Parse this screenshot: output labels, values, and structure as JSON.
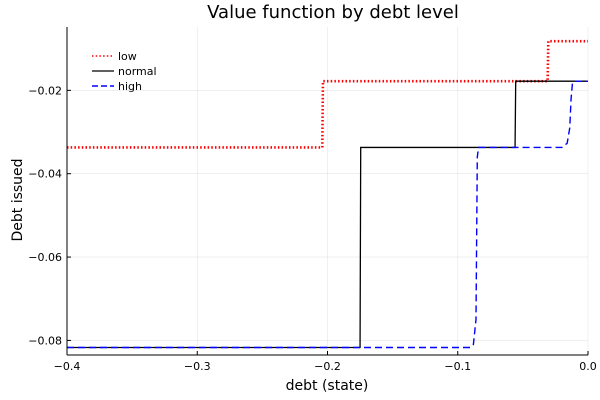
{
  "chart_data": {
    "type": "line",
    "title": "Value function by debt level",
    "xlabel": "debt (state)",
    "ylabel": "Debt issued",
    "xlim": [
      -0.4,
      0.0
    ],
    "ylim": [
      -0.0835,
      -0.0048
    ],
    "xticks": [
      -0.4,
      -0.3,
      -0.2,
      -0.1,
      0.0
    ],
    "xtick_labels": [
      "−0.4",
      "−0.3",
      "−0.2",
      "−0.1",
      "0.0"
    ],
    "yticks": [
      -0.08,
      -0.06,
      -0.04,
      -0.02
    ],
    "ytick_labels": [
      "−0.08",
      "−0.06",
      "−0.04",
      "−0.02"
    ],
    "grid": true,
    "legend_position": "top-left",
    "series": [
      {
        "name": "low",
        "color": "#ff0000",
        "style": "dotted",
        "x": [
          -0.4,
          -0.204,
          -0.2035,
          -0.031,
          -0.0305,
          0.0
        ],
        "y": [
          -0.0337,
          -0.0337,
          -0.0178,
          -0.0178,
          -0.0082,
          -0.0082
        ]
      },
      {
        "name": "normal",
        "color": "#000000",
        "style": "solid",
        "x": [
          -0.4,
          -0.175,
          -0.1745,
          -0.056,
          -0.0555,
          0.0
        ],
        "y": [
          -0.0817,
          -0.0817,
          -0.0337,
          -0.0337,
          -0.0178,
          -0.0178
        ]
      },
      {
        "name": "high",
        "color": "#0000ff",
        "style": "dashed",
        "x": [
          -0.4,
          -0.09,
          -0.088,
          -0.086,
          -0.085,
          -0.084,
          -0.02,
          -0.016,
          -0.014,
          -0.013,
          -0.012,
          -0.011,
          0.0
        ],
        "y": [
          -0.0817,
          -0.0817,
          -0.081,
          -0.075,
          -0.036,
          -0.0337,
          -0.0337,
          -0.0327,
          -0.029,
          -0.022,
          -0.0185,
          -0.0178,
          -0.0178
        ]
      }
    ]
  }
}
